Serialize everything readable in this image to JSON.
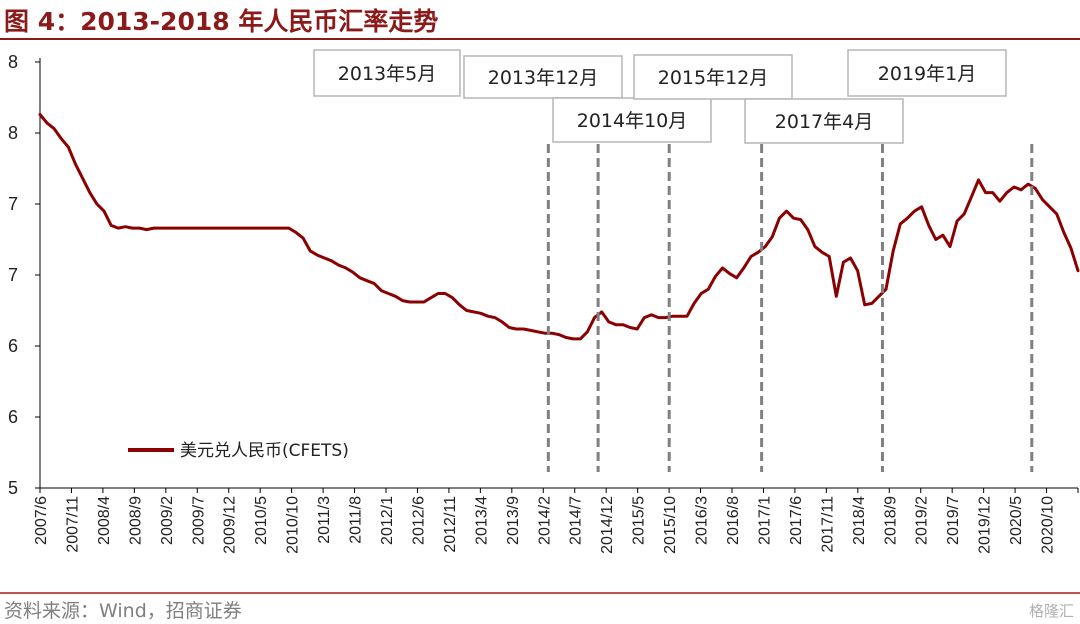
{
  "title": "图 4：2013-2018 年人民币汇率走势",
  "source": "资料来源：Wind，招商证券",
  "watermark": "格隆汇",
  "colors": {
    "accent": "#8b1a1a",
    "series": "#8b0000",
    "marker": "#808080"
  },
  "chart_data": {
    "type": "line",
    "y_tick_labels": [
      "5",
      "6",
      "6",
      "7",
      "7",
      "8",
      "8"
    ],
    "x_tick_labels": [
      "2007/6",
      "2007/11",
      "2008/4",
      "2008/9",
      "2009/2",
      "2009/7",
      "2009/12",
      "2010/5",
      "2010/10",
      "2011/3",
      "2011/8",
      "2012/1",
      "2012/6",
      "2012/11",
      "2013/4",
      "2013/9",
      "2014/2",
      "2014/7",
      "2014/12",
      "2015/5",
      "2015/10",
      "2016/3",
      "2016/8",
      "2017/1",
      "2017/6",
      "2017/11",
      "2018/4",
      "2018/9",
      "2019/2",
      "2019/7",
      "2019/12",
      "2020/5",
      "2020/10"
    ],
    "grid": false,
    "legend_position": "bottom-left",
    "series": [
      {
        "name": "美元兑人民币(CFETS)",
        "values": [
          [
            0,
            7.63
          ],
          [
            1,
            7.57
          ],
          [
            2,
            7.53
          ],
          [
            3,
            7.46
          ],
          [
            4,
            7.4
          ],
          [
            5,
            7.28
          ],
          [
            6,
            7.18
          ],
          [
            7,
            7.08
          ],
          [
            8,
            7.0
          ],
          [
            9,
            6.95
          ],
          [
            10,
            6.85
          ],
          [
            11,
            6.83
          ],
          [
            12,
            6.84
          ],
          [
            13,
            6.83
          ],
          [
            14,
            6.83
          ],
          [
            15,
            6.82
          ],
          [
            16,
            6.83
          ],
          [
            17,
            6.83
          ],
          [
            18,
            6.83
          ],
          [
            19,
            6.83
          ],
          [
            20,
            6.83
          ],
          [
            21,
            6.83
          ],
          [
            22,
            6.83
          ],
          [
            23,
            6.83
          ],
          [
            24,
            6.83
          ],
          [
            25,
            6.83
          ],
          [
            26,
            6.83
          ],
          [
            27,
            6.83
          ],
          [
            28,
            6.83
          ],
          [
            29,
            6.83
          ],
          [
            30,
            6.83
          ],
          [
            31,
            6.83
          ],
          [
            32,
            6.83
          ],
          [
            33,
            6.83
          ],
          [
            34,
            6.83
          ],
          [
            35,
            6.83
          ],
          [
            36,
            6.8
          ],
          [
            37,
            6.76
          ],
          [
            38,
            6.67
          ],
          [
            39,
            6.64
          ],
          [
            40,
            6.62
          ],
          [
            41,
            6.6
          ],
          [
            42,
            6.57
          ],
          [
            43,
            6.55
          ],
          [
            44,
            6.52
          ],
          [
            45,
            6.48
          ],
          [
            46,
            6.46
          ],
          [
            47,
            6.44
          ],
          [
            48,
            6.39
          ],
          [
            49,
            6.37
          ],
          [
            50,
            6.35
          ],
          [
            51,
            6.32
          ],
          [
            52,
            6.31
          ],
          [
            53,
            6.31
          ],
          [
            54,
            6.31
          ],
          [
            55,
            6.34
          ],
          [
            56,
            6.37
          ],
          [
            57,
            6.37
          ],
          [
            58,
            6.34
          ],
          [
            59,
            6.29
          ],
          [
            60,
            6.25
          ],
          [
            61,
            6.24
          ],
          [
            62,
            6.23
          ],
          [
            63,
            6.21
          ],
          [
            64,
            6.2
          ],
          [
            65,
            6.17
          ],
          [
            66,
            6.13
          ],
          [
            67,
            6.12
          ],
          [
            68,
            6.12
          ],
          [
            69,
            6.11
          ],
          [
            70,
            6.1
          ],
          [
            71,
            6.09
          ],
          [
            72,
            6.09
          ],
          [
            73,
            6.08
          ],
          [
            74,
            6.06
          ],
          [
            75,
            6.05
          ],
          [
            76,
            6.05
          ],
          [
            77,
            6.1
          ],
          [
            78,
            6.2
          ],
          [
            79,
            6.24
          ],
          [
            80,
            6.17
          ],
          [
            81,
            6.15
          ],
          [
            82,
            6.15
          ],
          [
            83,
            6.13
          ],
          [
            84,
            6.12
          ],
          [
            85,
            6.2
          ],
          [
            86,
            6.22
          ],
          [
            87,
            6.2
          ],
          [
            88,
            6.2
          ],
          [
            89,
            6.21
          ],
          [
            90,
            6.21
          ],
          [
            91,
            6.21
          ],
          [
            92,
            6.3
          ],
          [
            93,
            6.37
          ],
          [
            94,
            6.4
          ],
          [
            95,
            6.49
          ],
          [
            96,
            6.55
          ],
          [
            97,
            6.51
          ],
          [
            98,
            6.48
          ],
          [
            99,
            6.55
          ],
          [
            100,
            6.63
          ],
          [
            101,
            6.66
          ],
          [
            102,
            6.7
          ],
          [
            103,
            6.77
          ],
          [
            104,
            6.9
          ],
          [
            105,
            6.95
          ],
          [
            106,
            6.9
          ],
          [
            107,
            6.89
          ],
          [
            108,
            6.82
          ],
          [
            109,
            6.7
          ],
          [
            110,
            6.66
          ],
          [
            111,
            6.63
          ],
          [
            112,
            6.35
          ],
          [
            113,
            6.59
          ],
          [
            114,
            6.62
          ],
          [
            115,
            6.53
          ],
          [
            116,
            6.29
          ],
          [
            117,
            6.3
          ],
          [
            118,
            6.35
          ],
          [
            119,
            6.4
          ],
          [
            120,
            6.67
          ],
          [
            121,
            6.86
          ],
          [
            122,
            6.9
          ],
          [
            123,
            6.95
          ],
          [
            124,
            6.98
          ],
          [
            125,
            6.85
          ],
          [
            126,
            6.75
          ],
          [
            127,
            6.78
          ],
          [
            128,
            6.7
          ],
          [
            129,
            6.88
          ],
          [
            130,
            6.93
          ],
          [
            131,
            7.05
          ],
          [
            132,
            7.17
          ],
          [
            133,
            7.08
          ],
          [
            134,
            7.08
          ],
          [
            135,
            7.02
          ],
          [
            136,
            7.08
          ],
          [
            137,
            7.12
          ],
          [
            138,
            7.1
          ],
          [
            139,
            7.14
          ],
          [
            140,
            7.11
          ],
          [
            141,
            7.03
          ],
          [
            142,
            6.98
          ],
          [
            143,
            6.93
          ],
          [
            144,
            6.8
          ],
          [
            145,
            6.69
          ],
          [
            146,
            6.53
          ]
        ]
      }
    ],
    "markers": [
      {
        "label": "2013年5月",
        "x": 71.5
      },
      {
        "label": "2013年12月",
        "x": 78.5
      },
      {
        "label": "2014年10月",
        "x": 88.5
      },
      {
        "label": "2015年12月",
        "x": 101.5
      },
      {
        "label": "2017年4月",
        "x": 118.5
      },
      {
        "label": "2019年1月",
        "x": 139.5
      }
    ]
  }
}
